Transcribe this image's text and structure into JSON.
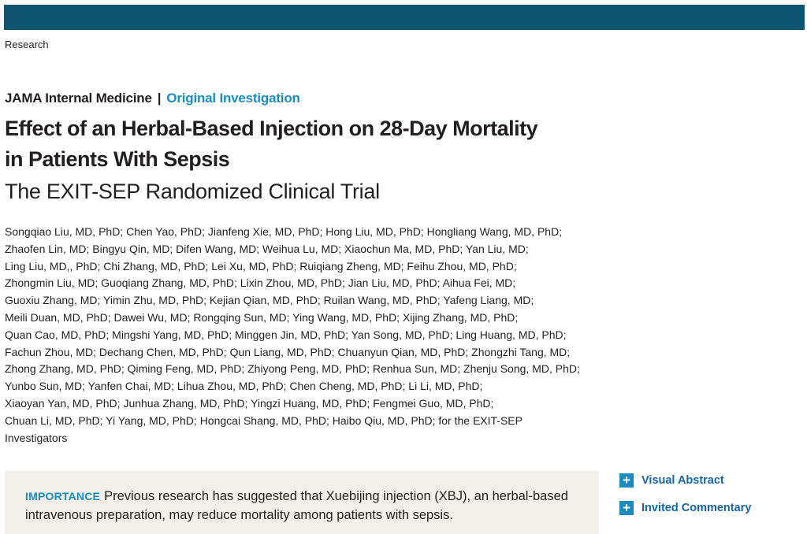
{
  "section": "Research",
  "journal": {
    "name": "JAMA Internal Medicine",
    "separator": "|",
    "article_type": "Original Investigation"
  },
  "article": {
    "title_line1": "Effect of an Herbal-Based Injection on 28-Day Mortality",
    "title_line2": "in Patients With Sepsis",
    "subtitle": "The EXIT-SEP Randomized Clinical Trial"
  },
  "authors_lines": [
    "Songqiao Liu, MD, PhD; Chen Yao, PhD; Jianfeng Xie, MD, PhD; Hong Liu, MD, PhD; Hongliang Wang, MD, PhD;",
    "Zhaofen Lin, MD; Bingyu Qin, MD; Difen Wang, MD; Weihua Lu, MD; Xiaochun Ma, MD, PhD; Yan Liu, MD;",
    "Ling Liu, MD,, PhD; Chi Zhang, MD, PhD; Lei Xu, MD, PhD; Ruiqiang Zheng, MD; Feihu Zhou, MD, PhD;",
    "Zhongmin Liu, MD; Guoqiang Zhang, MD, PhD; Lixin Zhou, MD, PhD; Jian Liu, MD, PhD; Aihua Fei, MD;",
    "Guoxiu Zhang, MD; Yimin Zhu, MD, PhD; Kejian Qian, MD, PhD; Ruilan Wang, MD, PhD; Yafeng Liang, MD;",
    "Meili Duan, MD, PhD; Dawei Wu, MD; Rongqing Sun, MD; Ying Wang, MD, PhD; Xijing Zhang, MD, PhD;",
    "Quan Cao, MD, PhD; Mingshi Yang, MD, PhD; Minggen Jin, MD, PhD; Yan Song, MD, PhD; Ling Huang, MD, PhD;",
    "Fachun Zhou, MD; Dechang Chen, MD, PhD; Qun Liang, MD, PhD; Chuanyun Qian, MD, PhD; Zhongzhi Tang, MD;",
    "Zhong Zhang, MD, PhD; Qiming Feng, MD, PhD; Zhiyong Peng, MD, PhD; Renhua Sun, MD; Zhenju Song, MD, PhD;",
    "Yunbo Sun, MD; Yanfen Chai, MD; Lihua Zhou, MD, PhD; Chen Cheng, MD, PhD; Li Li, MD, PhD;",
    "Xiaoyan Yan, MD, PhD; Junhua Zhang, MD, PhD; Yingzi Huang, MD, PhD; Fengmei Guo, MD, PhD;",
    "Chuan Li, MD, PhD; Yi Yang, MD, PhD; Hongcai Shang, MD, PhD; Haibo Qiu, MD, PhD; for the EXIT-SEP",
    "Investigators"
  ],
  "abstract": {
    "importance_label": "IMPORTANCE",
    "importance_line1": "Previous research has suggested that Xuebijing injection (XBJ), an herbal-based",
    "importance_line2": "intravenous preparation, may reduce mortality among patients with sepsis."
  },
  "side_links": [
    {
      "icon": "plus-icon",
      "label": "Visual Abstract"
    },
    {
      "icon": "plus-icon",
      "label": "Invited Commentary"
    }
  ],
  "colors": {
    "topbar": "#0f5470",
    "accent": "#1a8dc0",
    "link": "#1565a8",
    "abstract_bg": "#f1efe8"
  }
}
